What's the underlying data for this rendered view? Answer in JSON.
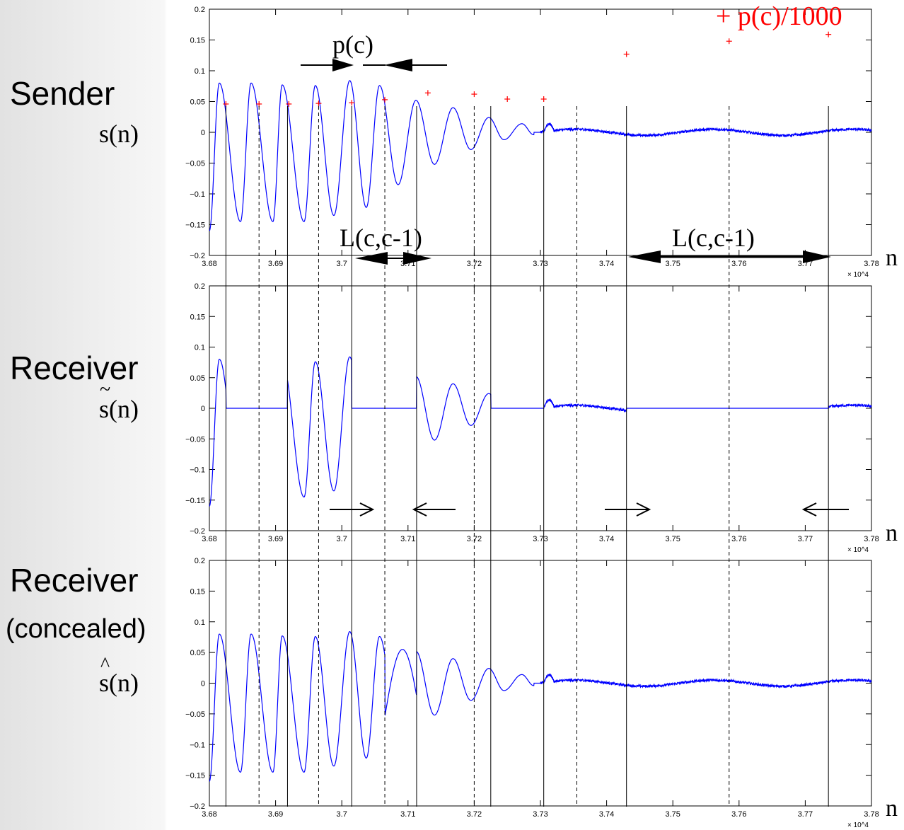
{
  "labels": {
    "sender": "Sender",
    "sender_symbol": "s(n)",
    "receiver": "Receiver",
    "receiver_symbol": "s(n)",
    "receiver_concealed": "Receiver",
    "concealed": "(concealed)",
    "concealed_symbol": "s(n)"
  },
  "chart_data": [
    {
      "type": "line",
      "title": "",
      "xlabel": "n",
      "x_scale_note": "× 10^4",
      "xlim": [
        3.68,
        3.78
      ],
      "ylim": [
        -0.2,
        0.2
      ],
      "x_ticks": [
        "3.68",
        "3.69",
        "3.7",
        "3.71",
        "3.72",
        "3.73",
        "3.74",
        "3.75",
        "3.76",
        "3.77",
        "3.78"
      ],
      "y_ticks": [
        "0.2",
        "0.15",
        "0.1",
        "0.05",
        "0",
        "−0.05",
        "−0.1",
        "−0.15",
        "−0.2"
      ],
      "series": [
        {
          "name": "s(n)",
          "color": "#0000ff",
          "type": "waveform",
          "segments": [
            {
              "start": 3.68,
              "end": 3.78,
              "mode": "original"
            }
          ]
        },
        {
          "name": "p(c)/1000",
          "color": "#ff0000",
          "type": "markers",
          "x": [
            3.6825,
            3.6875,
            3.692,
            3.6965,
            3.7015,
            3.7065,
            3.713,
            3.72,
            3.725,
            3.7305,
            3.743,
            3.7585,
            3.7735
          ],
          "y": [
            0.046,
            0.046,
            0.046,
            0.047,
            0.048,
            0.053,
            0.064,
            0.062,
            0.054,
            0.054,
            0.127,
            0.148,
            0.159
          ]
        }
      ],
      "annotations": {
        "pitch_label": "p(c)",
        "legend_label": "+ p(c)/1000",
        "segment_label_1": "L(c,c-1)",
        "segment_label_2": "L(c,c-1)"
      }
    },
    {
      "type": "line",
      "title": "",
      "xlabel": "n",
      "x_scale_note": "× 10^4",
      "xlim": [
        3.68,
        3.78
      ],
      "ylim": [
        -0.2,
        0.2
      ],
      "x_ticks": [
        "3.68",
        "3.69",
        "3.7",
        "3.71",
        "3.72",
        "3.73",
        "3.74",
        "3.75",
        "3.76",
        "3.77",
        "3.78"
      ],
      "y_ticks": [
        "0.2",
        "0.15",
        "0.1",
        "0.05",
        "0",
        "−0.05",
        "−0.1",
        "−0.15",
        "−0.2"
      ],
      "series": [
        {
          "name": "s~(n)",
          "color": "#0000ff",
          "type": "waveform",
          "segments": [
            {
              "start": 3.68,
              "end": 3.6825,
              "mode": "original"
            },
            {
              "start": 3.6825,
              "end": 3.6918,
              "mode": "zero"
            },
            {
              "start": 3.6918,
              "end": 3.7015,
              "mode": "original"
            },
            {
              "start": 3.7015,
              "end": 3.7113,
              "mode": "zero"
            },
            {
              "start": 3.7113,
              "end": 3.7225,
              "mode": "original"
            },
            {
              "start": 3.7225,
              "end": 3.7305,
              "mode": "zero"
            },
            {
              "start": 3.7305,
              "end": 3.743,
              "mode": "original"
            },
            {
              "start": 3.743,
              "end": 3.7735,
              "mode": "zero"
            },
            {
              "start": 3.7735,
              "end": 3.78,
              "mode": "original"
            }
          ]
        }
      ]
    },
    {
      "type": "line",
      "title": "",
      "xlabel": "n",
      "x_scale_note": "× 10^4",
      "xlim": [
        3.68,
        3.78
      ],
      "ylim": [
        -0.2,
        0.2
      ],
      "x_ticks": [
        "3.68",
        "3.69",
        "3.7",
        "3.71",
        "3.72",
        "3.73",
        "3.74",
        "3.75",
        "3.76",
        "3.77",
        "3.78"
      ],
      "y_ticks": [
        "0.2",
        "0.15",
        "0.1",
        "0.05",
        "0",
        "−0.05",
        "−0.1",
        "−0.15",
        "−0.2"
      ],
      "series": [
        {
          "name": "s^(n)",
          "color": "#0000ff",
          "type": "waveform",
          "segments": [
            {
              "start": 3.68,
              "end": 3.78,
              "mode": "concealed"
            }
          ]
        }
      ]
    }
  ],
  "marker_lines": {
    "solid": [
      3.6825,
      3.6918,
      3.7015,
      3.7113,
      3.7225,
      3.7305,
      3.743,
      3.7735
    ],
    "dashed": [
      3.6875,
      3.6965,
      3.7065,
      3.72,
      3.7355,
      3.7585
    ]
  }
}
